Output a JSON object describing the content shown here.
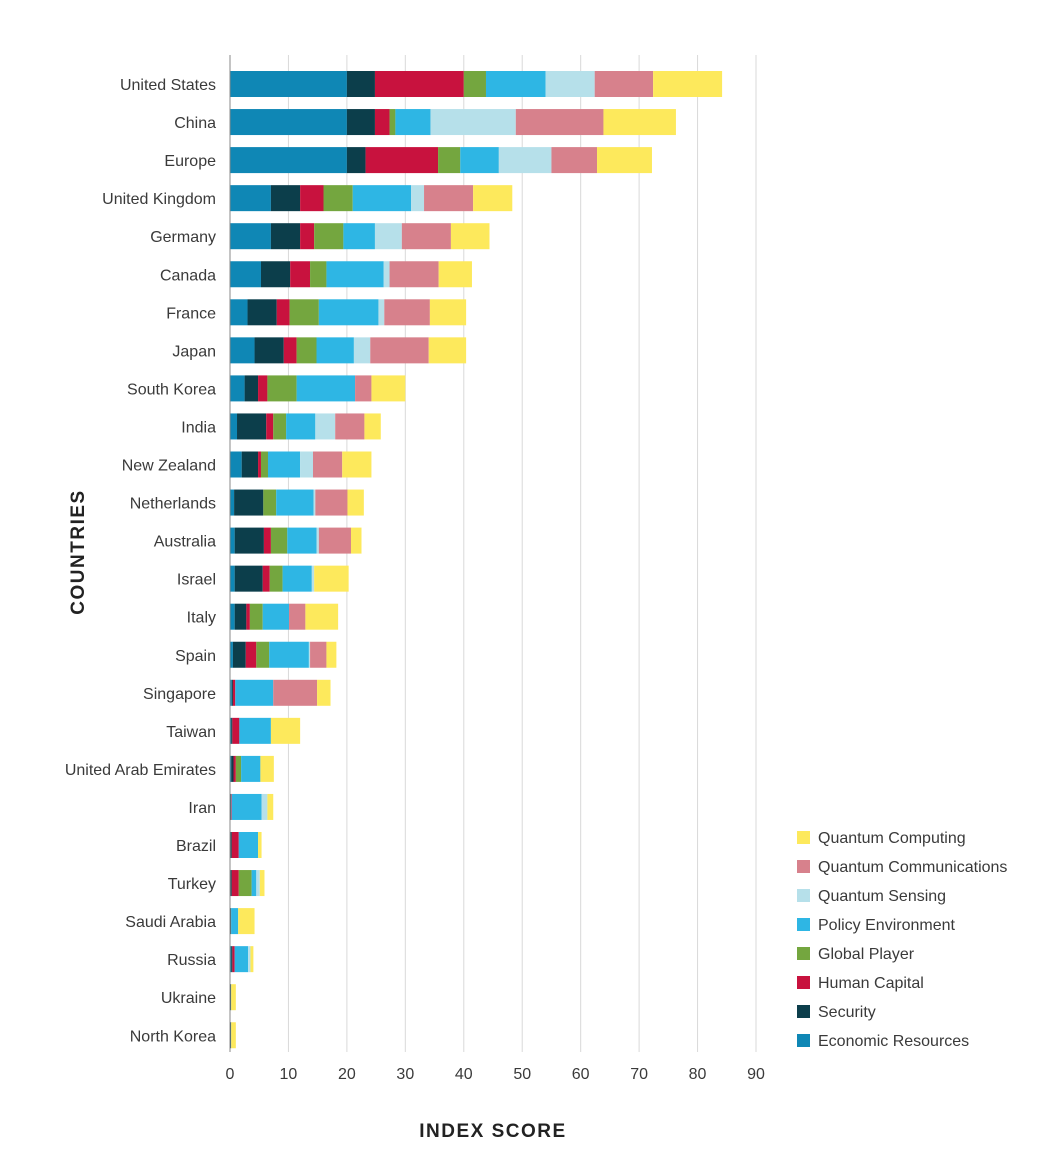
{
  "chart_data": {
    "type": "bar",
    "orientation": "horizontal",
    "stacked": true,
    "xlabel": "INDEX SCORE",
    "ylabel": "COUNTRIES",
    "xlim": [
      0,
      90
    ],
    "xticks": [
      0,
      10,
      20,
      30,
      40,
      50,
      60,
      70,
      80,
      90
    ],
    "grid": true,
    "legend_position": "bottom-right",
    "categories": [
      "United States",
      "China",
      "Europe",
      "United Kingdom",
      "Germany",
      "Canada",
      "France",
      "Japan",
      "South Korea",
      "India",
      "New Zealand",
      "Netherlands",
      "Australia",
      "Israel",
      "Italy",
      "Spain",
      "Singapore",
      "Taiwan",
      "United Arab Emirates",
      "Iran",
      "Brazil",
      "Turkey",
      "Saudi Arabia",
      "Russia",
      "Ukraine",
      "North Korea"
    ],
    "series": [
      {
        "name": "Economic Resources",
        "color": "#0f87b5",
        "values": [
          20,
          20,
          20,
          7,
          7,
          5.3,
          3,
          4.2,
          2.5,
          1.2,
          2,
          0.7,
          0.8,
          0.8,
          0.8,
          0.5,
          0.3,
          0.2,
          0.2,
          0.1,
          0.1,
          0.1,
          0.1,
          0.2,
          0.1,
          0.1
        ]
      },
      {
        "name": "Security",
        "color": "#0c3e4b",
        "values": [
          4.8,
          4.8,
          3.2,
          5,
          5,
          5,
          5,
          5,
          2.3,
          5,
          2.8,
          5,
          5,
          4.8,
          2,
          2.2,
          0.2,
          0.2,
          0.4,
          0.1,
          0.2,
          0.2,
          0.1,
          0.2,
          0.1,
          0.1
        ]
      },
      {
        "name": "Human Capital",
        "color": "#c8123e",
        "values": [
          15.2,
          2.5,
          12.4,
          4,
          2.4,
          3.4,
          2.2,
          2.2,
          1.6,
          1.2,
          0.5,
          0,
          1.2,
          1.2,
          0.6,
          1.8,
          0.4,
          1.2,
          0.4,
          0.1,
          1.2,
          1.2,
          0,
          0.4,
          0,
          0
        ]
      },
      {
        "name": "Global Player",
        "color": "#74a63f",
        "values": [
          3.8,
          1,
          3.8,
          5,
          5,
          2.8,
          5,
          3.4,
          5,
          2.2,
          1.2,
          2.2,
          2.8,
          2.2,
          2.2,
          2.2,
          0,
          0,
          0.9,
          0,
          0,
          2.2,
          0,
          0,
          0,
          0
        ]
      },
      {
        "name": "Policy Environment",
        "color": "#2eb6e4",
        "values": [
          10.2,
          6,
          6.6,
          10,
          5.4,
          9.8,
          10.2,
          6.4,
          10,
          5,
          5.5,
          6.4,
          5,
          5,
          4.5,
          6.8,
          6.5,
          5.4,
          3.3,
          5.1,
          3.3,
          0.8,
          1.2,
          2.3,
          0,
          0
        ]
      },
      {
        "name": "Quantum Sensing",
        "color": "#b6e0ea",
        "values": [
          8.4,
          14.6,
          9,
          2.2,
          4.6,
          1,
          1,
          2.8,
          0,
          3.4,
          2.2,
          0.3,
          0.4,
          0.4,
          0,
          0.2,
          0,
          0,
          0,
          1,
          0,
          0.6,
          0,
          0.4,
          0,
          0
        ]
      },
      {
        "name": "Quantum Communications",
        "color": "#d7818c",
        "values": [
          10,
          15,
          7.8,
          8.4,
          8.4,
          8.4,
          7.8,
          10,
          2.8,
          5,
          5,
          5.5,
          5.5,
          0,
          2.8,
          2.8,
          7.5,
          0,
          0,
          0,
          0,
          0,
          0,
          0,
          0,
          0
        ]
      },
      {
        "name": "Quantum Computing",
        "color": "#fde95c",
        "values": [
          11.8,
          12.4,
          9.4,
          6.7,
          6.6,
          5.7,
          6.2,
          6.4,
          5.8,
          2.8,
          5,
          2.8,
          1.8,
          5.9,
          5.6,
          1.7,
          2.3,
          5,
          2.3,
          1,
          0.6,
          0.8,
          2.8,
          0.5,
          0.8,
          0.8
        ]
      }
    ]
  }
}
